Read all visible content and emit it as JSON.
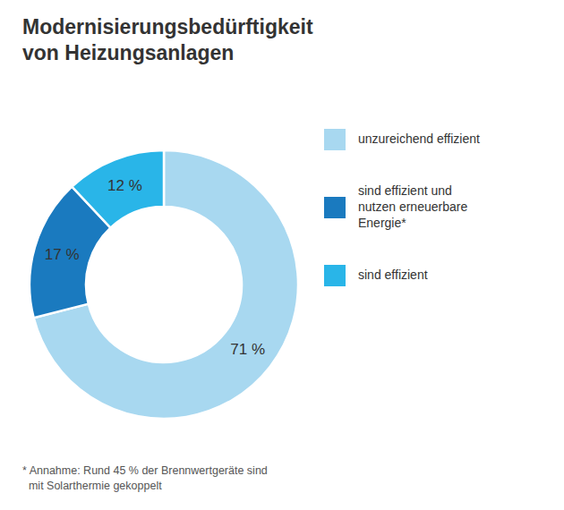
{
  "chart_data": {
    "type": "donut",
    "title": "Modernisierungsbedürftigkeit\nvon Heizungsanlagen",
    "categories": [
      "unzureichend effizient",
      "sind effizient und\nnutzen erneuerbare\nEnergie*",
      "sind effizient"
    ],
    "values": [
      71,
      17,
      12
    ],
    "value_labels": [
      "71 %",
      "17 %",
      "12 %"
    ],
    "colors": [
      "#a8d8f0",
      "#1a7abf",
      "#29b5e8"
    ],
    "data_labels": true,
    "legend": "right",
    "annotations": [
      "* Annahme: Rund 45 % der Brennwertgeräte sind\n  mit Solarthermie gekoppelt"
    ]
  }
}
